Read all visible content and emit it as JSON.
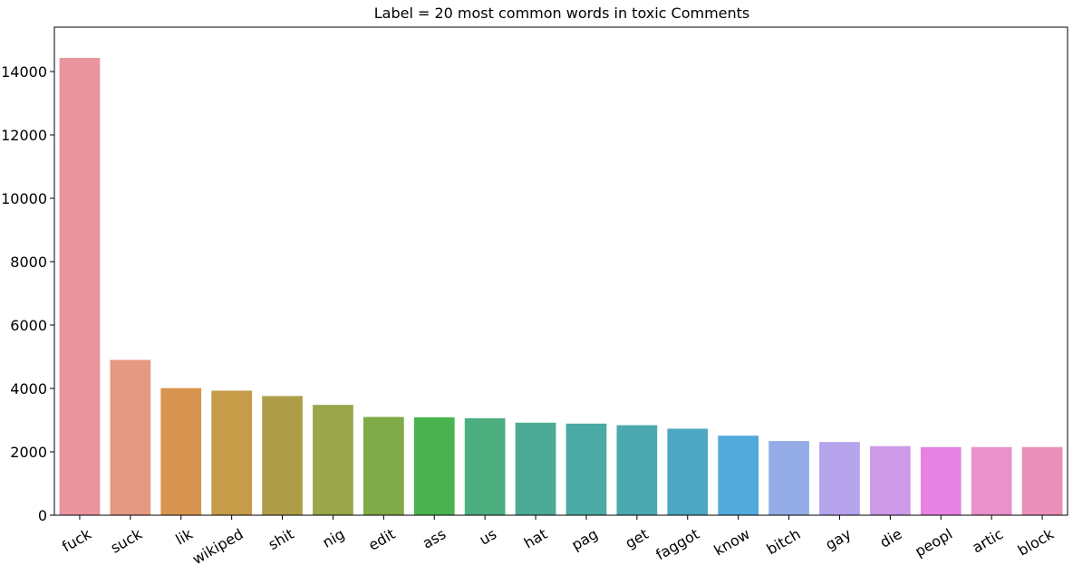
{
  "chart_data": {
    "type": "bar",
    "title": "Label = 20 most common words in toxic Comments",
    "xlabel": "",
    "ylabel": "",
    "ylim": [
      0,
      15400
    ],
    "yticks": [
      0,
      2000,
      4000,
      6000,
      8000,
      10000,
      12000,
      14000
    ],
    "grid": false,
    "categories": [
      "fuck",
      "suck",
      "lik",
      "wikiped",
      "shit",
      "nig",
      "edit",
      "ass",
      "us",
      "hat",
      "pag",
      "get",
      "faggot",
      "know",
      "bitch",
      "gay",
      "die",
      "peopl",
      "artic",
      "block"
    ],
    "values": [
      14430,
      4900,
      4010,
      3930,
      3760,
      3480,
      3100,
      3090,
      3060,
      2920,
      2890,
      2840,
      2730,
      2510,
      2340,
      2310,
      2180,
      2150,
      2150,
      2150
    ],
    "colors": [
      "#E8959F",
      "#E59882",
      "#D7944E",
      "#C69C48",
      "#AE9D48",
      "#9BA54A",
      "#80A947",
      "#4AB34F",
      "#4DAF80",
      "#4DAB95",
      "#4BAAA3",
      "#4CA9B0",
      "#4DA7C2",
      "#54A9DC",
      "#93ACE6",
      "#B5A4EB",
      "#CD9AE8",
      "#E682E2",
      "#E991CB",
      "#E98FB8"
    ]
  }
}
